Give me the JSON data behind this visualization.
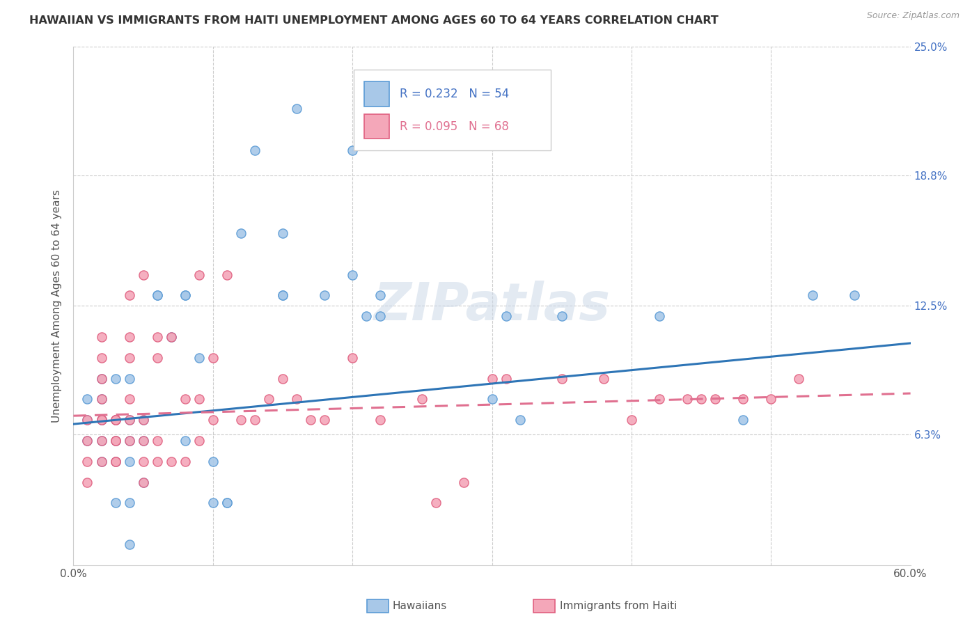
{
  "title": "HAWAIIAN VS IMMIGRANTS FROM HAITI UNEMPLOYMENT AMONG AGES 60 TO 64 YEARS CORRELATION CHART",
  "source": "Source: ZipAtlas.com",
  "ylabel": "Unemployment Among Ages 60 to 64 years",
  "xlim": [
    0.0,
    0.6
  ],
  "ylim": [
    0.0,
    0.25
  ],
  "hawaiians_color": "#a8c8e8",
  "hawaiians_edge_color": "#5b9bd5",
  "haiti_color": "#f4a7b9",
  "haiti_edge_color": "#e06080",
  "hawaiians_line_color": "#2e75b6",
  "haiti_line_color": "#e07090",
  "legend_R1": "R = 0.232",
  "legend_N1": "N = 54",
  "legend_R2": "R = 0.095",
  "legend_N2": "N = 68",
  "watermark": "ZIPatlas",
  "hawaii_intercept": 0.068,
  "hawaii_slope": 0.065,
  "haiti_intercept": 0.072,
  "haiti_slope": 0.018,
  "hawaiians_x": [
    0.01,
    0.01,
    0.01,
    0.02,
    0.02,
    0.02,
    0.02,
    0.02,
    0.02,
    0.03,
    0.03,
    0.03,
    0.03,
    0.03,
    0.04,
    0.04,
    0.04,
    0.04,
    0.04,
    0.04,
    0.05,
    0.05,
    0.05,
    0.06,
    0.06,
    0.07,
    0.08,
    0.08,
    0.08,
    0.09,
    0.1,
    0.1,
    0.11,
    0.11,
    0.12,
    0.13,
    0.15,
    0.15,
    0.15,
    0.16,
    0.18,
    0.2,
    0.2,
    0.21,
    0.22,
    0.22,
    0.3,
    0.31,
    0.32,
    0.35,
    0.42,
    0.48,
    0.53,
    0.56
  ],
  "hawaiians_y": [
    0.06,
    0.07,
    0.08,
    0.05,
    0.06,
    0.07,
    0.07,
    0.08,
    0.09,
    0.03,
    0.05,
    0.06,
    0.07,
    0.09,
    0.01,
    0.03,
    0.05,
    0.06,
    0.07,
    0.09,
    0.04,
    0.06,
    0.07,
    0.13,
    0.13,
    0.11,
    0.06,
    0.13,
    0.13,
    0.1,
    0.03,
    0.05,
    0.03,
    0.03,
    0.16,
    0.2,
    0.13,
    0.13,
    0.16,
    0.22,
    0.13,
    0.14,
    0.2,
    0.12,
    0.12,
    0.13,
    0.08,
    0.12,
    0.07,
    0.12,
    0.12,
    0.07,
    0.13,
    0.13
  ],
  "haiti_x": [
    0.01,
    0.01,
    0.01,
    0.01,
    0.02,
    0.02,
    0.02,
    0.02,
    0.02,
    0.02,
    0.02,
    0.02,
    0.03,
    0.03,
    0.03,
    0.03,
    0.03,
    0.03,
    0.03,
    0.04,
    0.04,
    0.04,
    0.04,
    0.04,
    0.04,
    0.05,
    0.05,
    0.05,
    0.05,
    0.05,
    0.06,
    0.06,
    0.06,
    0.06,
    0.07,
    0.07,
    0.08,
    0.08,
    0.09,
    0.09,
    0.09,
    0.1,
    0.1,
    0.11,
    0.12,
    0.13,
    0.14,
    0.15,
    0.16,
    0.17,
    0.18,
    0.2,
    0.22,
    0.25,
    0.26,
    0.28,
    0.3,
    0.31,
    0.35,
    0.38,
    0.4,
    0.42,
    0.44,
    0.45,
    0.46,
    0.48,
    0.5,
    0.52
  ],
  "haiti_y": [
    0.04,
    0.05,
    0.06,
    0.07,
    0.05,
    0.06,
    0.07,
    0.07,
    0.08,
    0.09,
    0.1,
    0.11,
    0.05,
    0.05,
    0.06,
    0.06,
    0.07,
    0.07,
    0.07,
    0.06,
    0.07,
    0.08,
    0.1,
    0.11,
    0.13,
    0.04,
    0.05,
    0.06,
    0.07,
    0.14,
    0.05,
    0.06,
    0.1,
    0.11,
    0.05,
    0.11,
    0.05,
    0.08,
    0.06,
    0.08,
    0.14,
    0.07,
    0.1,
    0.14,
    0.07,
    0.07,
    0.08,
    0.09,
    0.08,
    0.07,
    0.07,
    0.1,
    0.07,
    0.08,
    0.03,
    0.04,
    0.09,
    0.09,
    0.09,
    0.09,
    0.07,
    0.08,
    0.08,
    0.08,
    0.08,
    0.08,
    0.08,
    0.09
  ]
}
